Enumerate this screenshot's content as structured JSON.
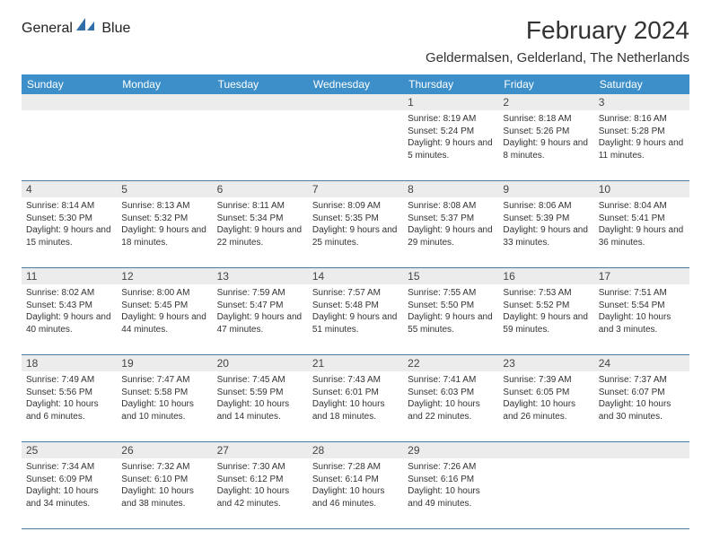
{
  "brand": {
    "general": "General",
    "blue": "Blue"
  },
  "title": "February 2024",
  "location": "Geldermalsen, Gelderland, The Netherlands",
  "colors": {
    "header_bg": "#3d8fc9",
    "header_text": "#ffffff",
    "daynum_bg": "#ececec",
    "border": "#4a7a9e",
    "text": "#333333",
    "brand_blue": "#3a7fbf"
  },
  "dayNames": [
    "Sunday",
    "Monday",
    "Tuesday",
    "Wednesday",
    "Thursday",
    "Friday",
    "Saturday"
  ],
  "weeks": [
    [
      {
        "num": "",
        "sunrise": "",
        "sunset": "",
        "daylight": ""
      },
      {
        "num": "",
        "sunrise": "",
        "sunset": "",
        "daylight": ""
      },
      {
        "num": "",
        "sunrise": "",
        "sunset": "",
        "daylight": ""
      },
      {
        "num": "",
        "sunrise": "",
        "sunset": "",
        "daylight": ""
      },
      {
        "num": "1",
        "sunrise": "Sunrise: 8:19 AM",
        "sunset": "Sunset: 5:24 PM",
        "daylight": "Daylight: 9 hours and 5 minutes."
      },
      {
        "num": "2",
        "sunrise": "Sunrise: 8:18 AM",
        "sunset": "Sunset: 5:26 PM",
        "daylight": "Daylight: 9 hours and 8 minutes."
      },
      {
        "num": "3",
        "sunrise": "Sunrise: 8:16 AM",
        "sunset": "Sunset: 5:28 PM",
        "daylight": "Daylight: 9 hours and 11 minutes."
      }
    ],
    [
      {
        "num": "4",
        "sunrise": "Sunrise: 8:14 AM",
        "sunset": "Sunset: 5:30 PM",
        "daylight": "Daylight: 9 hours and 15 minutes."
      },
      {
        "num": "5",
        "sunrise": "Sunrise: 8:13 AM",
        "sunset": "Sunset: 5:32 PM",
        "daylight": "Daylight: 9 hours and 18 minutes."
      },
      {
        "num": "6",
        "sunrise": "Sunrise: 8:11 AM",
        "sunset": "Sunset: 5:34 PM",
        "daylight": "Daylight: 9 hours and 22 minutes."
      },
      {
        "num": "7",
        "sunrise": "Sunrise: 8:09 AM",
        "sunset": "Sunset: 5:35 PM",
        "daylight": "Daylight: 9 hours and 25 minutes."
      },
      {
        "num": "8",
        "sunrise": "Sunrise: 8:08 AM",
        "sunset": "Sunset: 5:37 PM",
        "daylight": "Daylight: 9 hours and 29 minutes."
      },
      {
        "num": "9",
        "sunrise": "Sunrise: 8:06 AM",
        "sunset": "Sunset: 5:39 PM",
        "daylight": "Daylight: 9 hours and 33 minutes."
      },
      {
        "num": "10",
        "sunrise": "Sunrise: 8:04 AM",
        "sunset": "Sunset: 5:41 PM",
        "daylight": "Daylight: 9 hours and 36 minutes."
      }
    ],
    [
      {
        "num": "11",
        "sunrise": "Sunrise: 8:02 AM",
        "sunset": "Sunset: 5:43 PM",
        "daylight": "Daylight: 9 hours and 40 minutes."
      },
      {
        "num": "12",
        "sunrise": "Sunrise: 8:00 AM",
        "sunset": "Sunset: 5:45 PM",
        "daylight": "Daylight: 9 hours and 44 minutes."
      },
      {
        "num": "13",
        "sunrise": "Sunrise: 7:59 AM",
        "sunset": "Sunset: 5:47 PM",
        "daylight": "Daylight: 9 hours and 47 minutes."
      },
      {
        "num": "14",
        "sunrise": "Sunrise: 7:57 AM",
        "sunset": "Sunset: 5:48 PM",
        "daylight": "Daylight: 9 hours and 51 minutes."
      },
      {
        "num": "15",
        "sunrise": "Sunrise: 7:55 AM",
        "sunset": "Sunset: 5:50 PM",
        "daylight": "Daylight: 9 hours and 55 minutes."
      },
      {
        "num": "16",
        "sunrise": "Sunrise: 7:53 AM",
        "sunset": "Sunset: 5:52 PM",
        "daylight": "Daylight: 9 hours and 59 minutes."
      },
      {
        "num": "17",
        "sunrise": "Sunrise: 7:51 AM",
        "sunset": "Sunset: 5:54 PM",
        "daylight": "Daylight: 10 hours and 3 minutes."
      }
    ],
    [
      {
        "num": "18",
        "sunrise": "Sunrise: 7:49 AM",
        "sunset": "Sunset: 5:56 PM",
        "daylight": "Daylight: 10 hours and 6 minutes."
      },
      {
        "num": "19",
        "sunrise": "Sunrise: 7:47 AM",
        "sunset": "Sunset: 5:58 PM",
        "daylight": "Daylight: 10 hours and 10 minutes."
      },
      {
        "num": "20",
        "sunrise": "Sunrise: 7:45 AM",
        "sunset": "Sunset: 5:59 PM",
        "daylight": "Daylight: 10 hours and 14 minutes."
      },
      {
        "num": "21",
        "sunrise": "Sunrise: 7:43 AM",
        "sunset": "Sunset: 6:01 PM",
        "daylight": "Daylight: 10 hours and 18 minutes."
      },
      {
        "num": "22",
        "sunrise": "Sunrise: 7:41 AM",
        "sunset": "Sunset: 6:03 PM",
        "daylight": "Daylight: 10 hours and 22 minutes."
      },
      {
        "num": "23",
        "sunrise": "Sunrise: 7:39 AM",
        "sunset": "Sunset: 6:05 PM",
        "daylight": "Daylight: 10 hours and 26 minutes."
      },
      {
        "num": "24",
        "sunrise": "Sunrise: 7:37 AM",
        "sunset": "Sunset: 6:07 PM",
        "daylight": "Daylight: 10 hours and 30 minutes."
      }
    ],
    [
      {
        "num": "25",
        "sunrise": "Sunrise: 7:34 AM",
        "sunset": "Sunset: 6:09 PM",
        "daylight": "Daylight: 10 hours and 34 minutes."
      },
      {
        "num": "26",
        "sunrise": "Sunrise: 7:32 AM",
        "sunset": "Sunset: 6:10 PM",
        "daylight": "Daylight: 10 hours and 38 minutes."
      },
      {
        "num": "27",
        "sunrise": "Sunrise: 7:30 AM",
        "sunset": "Sunset: 6:12 PM",
        "daylight": "Daylight: 10 hours and 42 minutes."
      },
      {
        "num": "28",
        "sunrise": "Sunrise: 7:28 AM",
        "sunset": "Sunset: 6:14 PM",
        "daylight": "Daylight: 10 hours and 46 minutes."
      },
      {
        "num": "29",
        "sunrise": "Sunrise: 7:26 AM",
        "sunset": "Sunset: 6:16 PM",
        "daylight": "Daylight: 10 hours and 49 minutes."
      },
      {
        "num": "",
        "sunrise": "",
        "sunset": "",
        "daylight": ""
      },
      {
        "num": "",
        "sunrise": "",
        "sunset": "",
        "daylight": ""
      }
    ]
  ]
}
